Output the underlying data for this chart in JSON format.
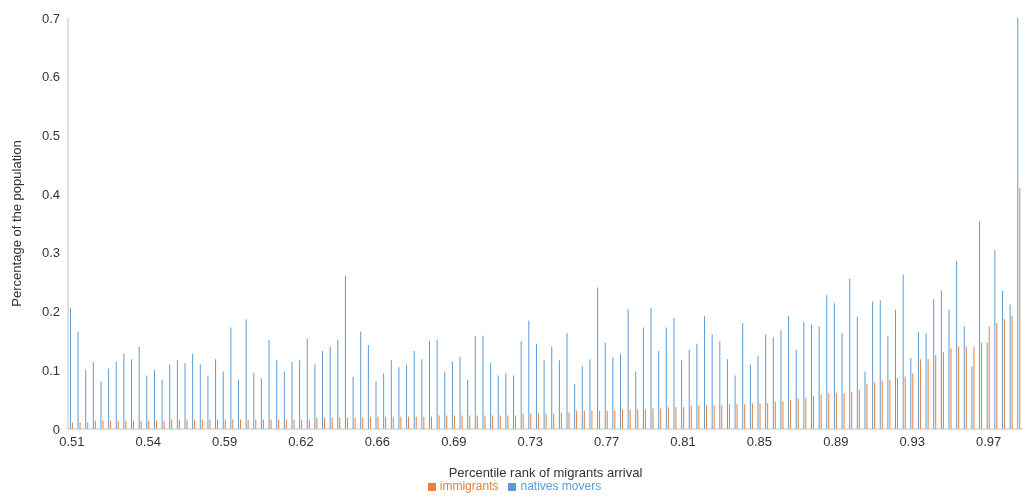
{
  "chart_data": {
    "type": "bar",
    "xlabel": "Percentile rank of migrants arrival",
    "ylabel": "Percentage of the population",
    "categories": [
      "0.51",
      null,
      null,
      null,
      null,
      null,
      null,
      null,
      null,
      null,
      "0.54",
      null,
      null,
      null,
      null,
      null,
      null,
      null,
      null,
      null,
      "0.59",
      null,
      null,
      null,
      null,
      null,
      null,
      null,
      null,
      null,
      "0.62",
      null,
      null,
      null,
      null,
      null,
      null,
      null,
      null,
      null,
      "0.66",
      null,
      null,
      null,
      null,
      null,
      null,
      null,
      null,
      null,
      "0.69",
      null,
      null,
      null,
      null,
      null,
      null,
      null,
      null,
      null,
      "0.73",
      null,
      null,
      null,
      null,
      null,
      null,
      null,
      null,
      null,
      "0.77",
      null,
      null,
      null,
      null,
      null,
      null,
      null,
      null,
      null,
      "0.81",
      null,
      null,
      null,
      null,
      null,
      null,
      null,
      null,
      null,
      "0.85",
      null,
      null,
      null,
      null,
      null,
      null,
      null,
      null,
      null,
      "0.89",
      null,
      null,
      null,
      null,
      null,
      null,
      null,
      null,
      null,
      "0.93",
      null,
      null,
      null,
      null,
      null,
      null,
      null,
      null,
      null,
      "0.97",
      null,
      null,
      null,
      null
    ],
    "series": [
      {
        "name": "natives movers",
        "color": "#5b9bd5",
        "values": [
          0.206,
          0.166,
          0.101,
          0.114,
          0.081,
          0.103,
          0.114,
          0.128,
          0.119,
          0.14,
          0.091,
          0.101,
          0.084,
          0.11,
          0.117,
          0.112,
          0.128,
          0.11,
          0.091,
          0.119,
          0.098,
          0.173,
          0.084,
          0.187,
          0.096,
          0.086,
          0.152,
          0.117,
          0.098,
          0.114,
          0.117,
          0.154,
          0.11,
          0.133,
          0.14,
          0.152,
          0.26,
          0.089,
          0.166,
          0.143,
          0.081,
          0.095,
          0.117,
          0.105,
          0.11,
          0.133,
          0.119,
          0.15,
          0.152,
          0.098,
          0.114,
          0.123,
          0.084,
          0.159,
          0.159,
          0.112,
          0.091,
          0.095,
          0.091,
          0.15,
          0.185,
          0.145,
          0.117,
          0.14,
          0.117,
          0.163,
          0.077,
          0.107,
          0.119,
          0.241,
          0.147,
          0.122,
          0.128,
          0.204,
          0.098,
          0.173,
          0.206,
          0.133,
          0.173,
          0.189,
          0.117,
          0.135,
          0.145,
          0.192,
          0.161,
          0.15,
          0.119,
          0.091,
          0.18,
          0.11,
          0.124,
          0.161,
          0.156,
          0.168,
          0.192,
          0.135,
          0.182,
          0.178,
          0.175,
          0.228,
          0.214,
          0.163,
          0.256,
          0.191,
          0.098,
          0.217,
          0.219,
          0.158,
          0.203,
          0.263,
          0.121,
          0.165,
          0.163,
          0.221,
          0.235,
          0.203,
          0.286,
          0.175,
          0.107,
          0.354,
          0.147,
          0.305,
          0.235,
          0.212,
          0.7
        ]
      },
      {
        "name": "immigrants",
        "color": "#ed7d31",
        "values": [
          0.011,
          0.011,
          0.011,
          0.014,
          0.014,
          0.014,
          0.014,
          0.014,
          0.014,
          0.014,
          0.014,
          0.014,
          0.014,
          0.016,
          0.016,
          0.016,
          0.016,
          0.016,
          0.016,
          0.016,
          0.016,
          0.016,
          0.016,
          0.016,
          0.016,
          0.016,
          0.016,
          0.016,
          0.016,
          0.016,
          0.016,
          0.016,
          0.019,
          0.019,
          0.019,
          0.019,
          0.019,
          0.019,
          0.019,
          0.021,
          0.021,
          0.021,
          0.021,
          0.021,
          0.021,
          0.021,
          0.021,
          0.021,
          0.023,
          0.023,
          0.023,
          0.023,
          0.023,
          0.023,
          0.023,
          0.023,
          0.023,
          0.023,
          0.023,
          0.026,
          0.026,
          0.026,
          0.026,
          0.026,
          0.028,
          0.028,
          0.031,
          0.031,
          0.031,
          0.031,
          0.031,
          0.031,
          0.033,
          0.033,
          0.033,
          0.033,
          0.035,
          0.035,
          0.037,
          0.037,
          0.037,
          0.04,
          0.04,
          0.04,
          0.04,
          0.04,
          0.042,
          0.042,
          0.042,
          0.044,
          0.044,
          0.044,
          0.047,
          0.047,
          0.049,
          0.052,
          0.053,
          0.056,
          0.058,
          0.061,
          0.061,
          0.061,
          0.063,
          0.067,
          0.077,
          0.079,
          0.082,
          0.084,
          0.087,
          0.089,
          0.095,
          0.119,
          0.119,
          0.126,
          0.131,
          0.137,
          0.14,
          0.14,
          0.14,
          0.147,
          0.175,
          0.18,
          0.187,
          0.193,
          0.41
        ]
      }
    ],
    "ylim": [
      0,
      0.7
    ],
    "yticks": [
      0,
      0.1,
      0.2,
      0.3,
      0.4,
      0.5,
      0.6,
      0.7
    ],
    "grid": false,
    "legend": "bottom"
  }
}
